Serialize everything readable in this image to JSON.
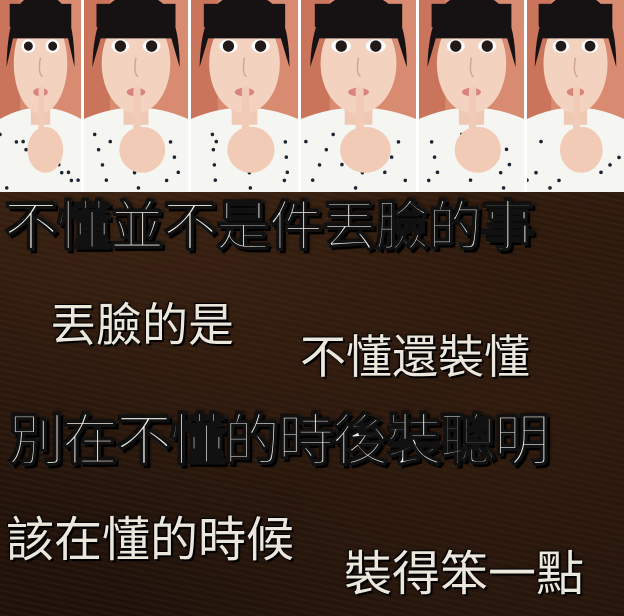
{
  "photo_strip": {
    "frame_count": 6,
    "subject": "girl-shush-gesture-selfie"
  },
  "captions": {
    "line1": "不懂並不是件丟臉的事",
    "line2a": "丟臉的是",
    "line2b": "不懂還裝懂",
    "line3": "別在不懂的時後裝聰明",
    "line4a": "該在懂的時候",
    "line4b": "裝得笨一點"
  },
  "colors": {
    "background": "#2a170b",
    "text": "#f4f1ea",
    "frame_divider": "#ffffff",
    "wall": "#d98b72"
  }
}
